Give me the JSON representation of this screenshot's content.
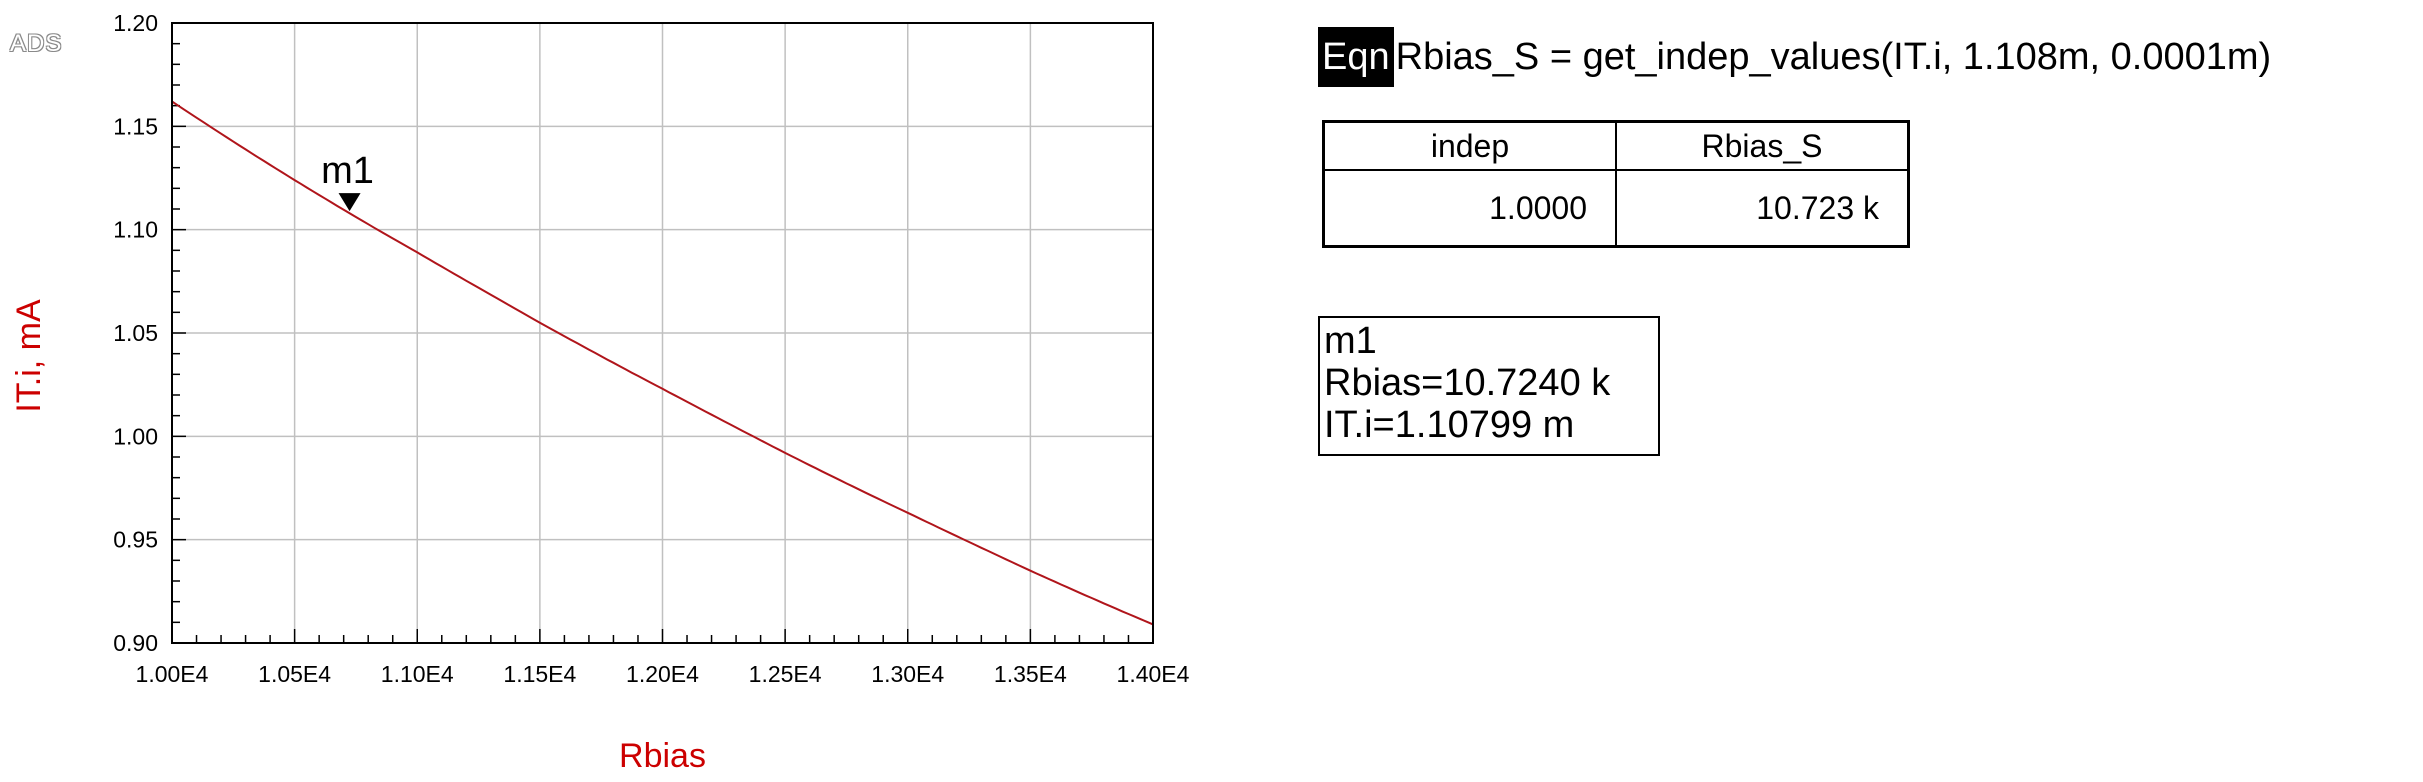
{
  "app_logo": "ADS",
  "equation": {
    "tag": "Eqn",
    "text": "Rbias_S = get_indep_values(IT.i, 1.108m, 0.0001m)"
  },
  "result_table": {
    "headers": [
      "indep",
      "Rbias_S"
    ],
    "rows": [
      [
        "1.0000",
        "10.723 k"
      ]
    ]
  },
  "marker_readout": {
    "name": "m1",
    "line1": "Rbias=10.7240 k",
    "line2": "IT.i=1.10799 m"
  },
  "colors": {
    "curve": "#b0151b",
    "axis_title": "#cc0000",
    "grid": "#c0c0c0",
    "frame": "#000000"
  },
  "chart_data": {
    "type": "line",
    "xlabel": "Rbias",
    "ylabel": "IT.i, mA",
    "xlim": [
      10000,
      14000
    ],
    "ylim": [
      0.9,
      1.2
    ],
    "xticks": [
      10000,
      10500,
      11000,
      11500,
      12000,
      12500,
      13000,
      13500,
      14000
    ],
    "xtick_labels": [
      "1.00E4",
      "1.05E4",
      "1.10E4",
      "1.15E4",
      "1.20E4",
      "1.25E4",
      "1.30E4",
      "1.35E4",
      "1.40E4"
    ],
    "yticks": [
      0.9,
      0.95,
      1.0,
      1.05,
      1.1,
      1.15,
      1.2
    ],
    "ytick_labels": [
      "0.90",
      "0.95",
      "1.00",
      "1.05",
      "1.10",
      "1.15",
      "1.20"
    ],
    "grid": true,
    "series": [
      {
        "x": [
          10000,
          10500,
          11000,
          11500,
          12000,
          12500,
          13000,
          13500,
          14000
        ],
        "y": [
          1.162,
          1.124,
          1.089,
          1.055,
          1.023,
          0.992,
          0.963,
          0.935,
          0.909
        ]
      }
    ],
    "markers": [
      {
        "label": "m1",
        "x": 10724,
        "y": 1.10799
      }
    ]
  }
}
